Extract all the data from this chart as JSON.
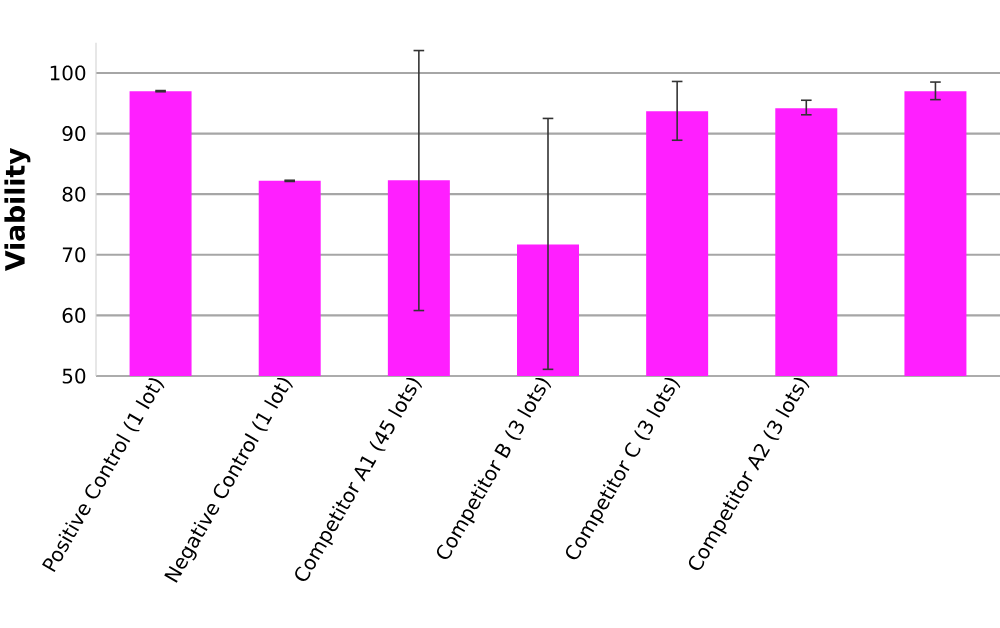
{
  "chart_data": {
    "type": "bar",
    "ylabel": "Viability",
    "categories": [
      "Positive Control (1 lot)",
      "Negative Control (1 lot)",
      "Competitor A1 (45 lots)",
      "Competitor B (3 lots)",
      "Competitor C (3 lots)",
      "Competitor A2 (3 lots)",
      null
    ],
    "values": [
      97.0,
      82.2,
      82.3,
      71.7,
      93.7,
      94.2,
      97.0
    ],
    "errors": [
      0.1,
      0.1,
      [
        60.8,
        103.7
      ],
      [
        51.1,
        92.5
      ],
      [
        88.9,
        98.6
      ],
      [
        93.1,
        95.5
      ],
      [
        95.6,
        98.5
      ]
    ],
    "color": "#ff1fff",
    "ylim": [
      50,
      105
    ],
    "yticks": [
      50,
      60,
      70,
      80,
      90,
      100
    ],
    "grid": "y"
  }
}
